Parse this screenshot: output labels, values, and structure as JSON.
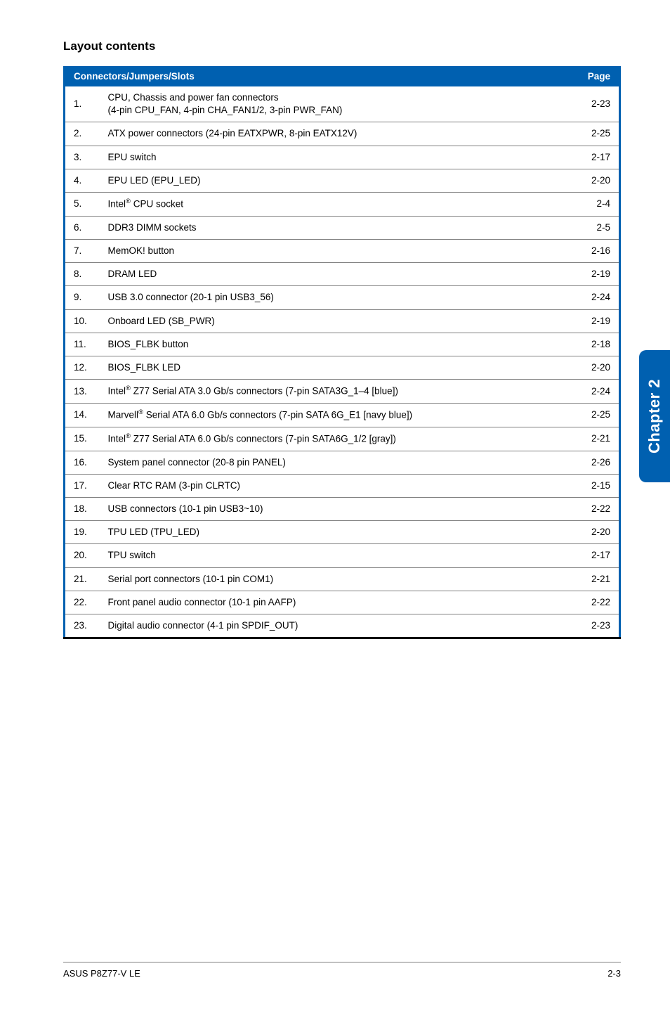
{
  "colors": {
    "header_bg": "#0060b0",
    "frame": "#0060b0",
    "tab_bg": "#0060b0",
    "row_border": "#808080"
  },
  "section_title": "Layout contents",
  "table": {
    "header_left": "Connectors/Jumpers/Slots",
    "header_right": "Page",
    "rows": [
      {
        "n": "1.",
        "desc_html": "CPU, Chassis and power fan connectors<br>(4-pin CPU_FAN, 4-pin CHA_FAN1/2, 3-pin PWR_FAN)",
        "page": "2-23"
      },
      {
        "n": "2.",
        "desc_html": "ATX power connectors (24-pin EATXPWR, 8-pin EATX12V)",
        "page": "2-25"
      },
      {
        "n": "3.",
        "desc_html": "EPU switch",
        "page": "2-17"
      },
      {
        "n": "4.",
        "desc_html": "EPU LED (EPU_LED)",
        "page": "2-20"
      },
      {
        "n": "5.",
        "desc_html": "Intel<sup>®</sup> CPU socket",
        "page": "2-4"
      },
      {
        "n": "6.",
        "desc_html": "DDR3 DIMM sockets",
        "page": "2-5"
      },
      {
        "n": "7.",
        "desc_html": "MemOK! button",
        "page": "2-16"
      },
      {
        "n": "8.",
        "desc_html": "DRAM LED",
        "page": "2-19"
      },
      {
        "n": "9.",
        "desc_html": "USB 3.0 connector (20-1 pin USB3_56)",
        "page": "2-24"
      },
      {
        "n": "10.",
        "desc_html": "Onboard LED (SB_PWR)",
        "page": "2-19"
      },
      {
        "n": "11.",
        "desc_html": "BIOS_FLBK button",
        "page": "2-18"
      },
      {
        "n": "12.",
        "desc_html": "BIOS_FLBK LED",
        "page": "2-20"
      },
      {
        "n": "13.",
        "desc_html": "Intel<sup>®</sup> Z77 Serial ATA 3.0 Gb/s connectors (7-pin SATA3G_1–4 [blue])",
        "page": "2-24"
      },
      {
        "n": "14.",
        "desc_html": "Marvell<sup>®</sup> Serial ATA 6.0 Gb/s connectors (7-pin SATA 6G_E1 [navy blue])",
        "page": "2-25"
      },
      {
        "n": "15.",
        "desc_html": "Intel<sup>®</sup> Z77 Serial ATA 6.0 Gb/s connectors (7-pin SATA6G_1/2 [gray])",
        "page": "2-21"
      },
      {
        "n": "16.",
        "desc_html": "System panel connector (20-8 pin PANEL)",
        "page": "2-26"
      },
      {
        "n": "17.",
        "desc_html": "Clear RTC RAM (3-pin CLRTC)",
        "page": "2-15"
      },
      {
        "n": "18.",
        "desc_html": "USB connectors (10-1 pin USB3~10)",
        "page": "2-22"
      },
      {
        "n": "19.",
        "desc_html": "TPU LED (TPU_LED)",
        "page": "2-20"
      },
      {
        "n": "20.",
        "desc_html": "TPU switch",
        "page": "2-17"
      },
      {
        "n": "21.",
        "desc_html": "Serial port connectors (10-1 pin COM1)",
        "page": "2-21"
      },
      {
        "n": "22.",
        "desc_html": "Front panel audio connector (10-1 pin AAFP)",
        "page": "2-22"
      },
      {
        "n": "23.",
        "desc_html": "Digital audio connector (4-1 pin SPDIF_OUT)",
        "page": "2-23"
      }
    ]
  },
  "side_tab": "Chapter 2",
  "footer": {
    "left": "ASUS P8Z77-V LE",
    "right": "2-3"
  }
}
